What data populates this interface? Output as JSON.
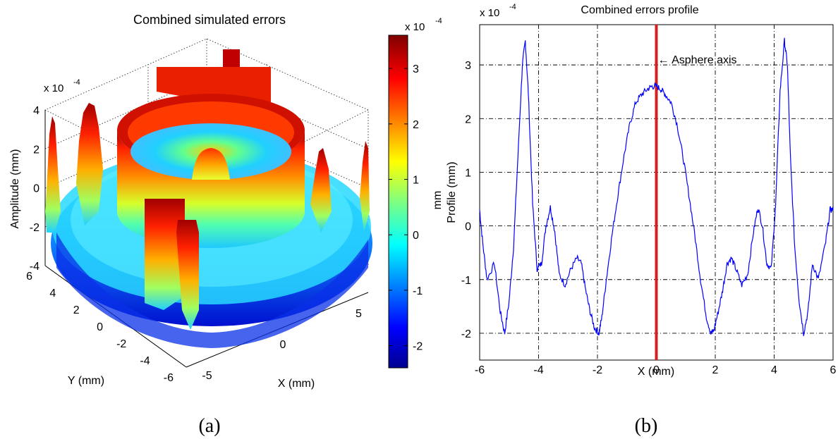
{
  "panels": {
    "left_caption": "(a)",
    "right_caption": "(b)"
  },
  "chart_data": [
    {
      "type": "surface",
      "title": "Combined simulated errors",
      "xlabel": "X (mm)",
      "ylabel": "Y (mm)",
      "zlabel": "Amplitude (mm)",
      "z_multiplier": "x 10",
      "z_exponent": "-4",
      "xlim": [
        -6,
        6
      ],
      "ylim": [
        -6,
        6
      ],
      "zlim": [
        -4,
        4
      ],
      "x_ticks": [
        "-5",
        "0",
        "5"
      ],
      "y_ticks": [
        "6",
        "4",
        "2",
        "0",
        "-2",
        "-4",
        "-6"
      ],
      "z_ticks": [
        "4",
        "2",
        "0",
        "-2",
        "-4"
      ],
      "grid": true,
      "colormap": "jet",
      "colorbar": {
        "label": "mm",
        "multiplier": "x 10",
        "exponent": "-4",
        "range": [
          -2.4,
          3.6
        ],
        "ticks": [
          "3",
          "2",
          "1",
          "0",
          "-1",
          "-2"
        ]
      }
    },
    {
      "type": "line",
      "title": "Combined errors profile",
      "xlabel": "X (mm)",
      "ylabel": "Profile (mm)",
      "y_multiplier": "x 10",
      "y_exponent": "-4",
      "xlim": [
        -6,
        6
      ],
      "ylim": [
        -2.5,
        3.75
      ],
      "x_ticks": [
        "-6",
        "-4",
        "-2",
        "0",
        "2",
        "4",
        "6"
      ],
      "y_ticks": [
        "3",
        "2",
        "1",
        "0",
        "-1",
        "-2"
      ],
      "grid": true,
      "series": [
        {
          "color": "#0000ff",
          "x": [
            -6.0,
            -5.9,
            -5.75,
            -5.5,
            -5.3,
            -5.15,
            -5.0,
            -4.85,
            -4.7,
            -4.55,
            -4.45,
            -4.35,
            -4.2,
            -4.05,
            -3.9,
            -3.75,
            -3.6,
            -3.45,
            -3.3,
            -3.1,
            -2.9,
            -2.7,
            -2.55,
            -2.4,
            -2.25,
            -2.1,
            -1.95,
            -1.85,
            -1.7,
            -1.5,
            -1.3,
            -1.1,
            -0.9,
            -0.7,
            -0.5,
            -0.3,
            -0.15,
            0.0,
            0.15,
            0.3,
            0.5,
            0.7,
            0.9,
            1.1,
            1.3,
            1.5,
            1.7,
            1.85,
            1.95,
            2.1,
            2.25,
            2.4,
            2.55,
            2.7,
            2.9,
            3.1,
            3.3,
            3.45,
            3.6,
            3.75,
            3.9,
            4.05,
            4.2,
            4.35,
            4.45,
            4.55,
            4.7,
            4.85,
            5.0,
            5.15,
            5.3,
            5.5,
            5.75,
            5.9,
            6.0
          ],
          "y": [
            0.3,
            -0.3,
            -1.0,
            -0.7,
            -1.6,
            -2.0,
            -1.4,
            -0.4,
            1.3,
            3.0,
            3.45,
            2.5,
            0.4,
            -0.8,
            -0.7,
            0.0,
            0.35,
            -0.1,
            -0.9,
            -1.1,
            -0.8,
            -0.6,
            -0.7,
            -1.2,
            -1.6,
            -1.9,
            -2.0,
            -1.7,
            -1.0,
            -0.15,
            0.6,
            1.3,
            1.9,
            2.3,
            2.45,
            2.55,
            2.6,
            2.6,
            2.55,
            2.45,
            2.3,
            1.9,
            1.3,
            0.6,
            -0.15,
            -1.0,
            -1.7,
            -2.0,
            -1.95,
            -1.6,
            -1.2,
            -0.7,
            -0.6,
            -0.8,
            -1.1,
            -0.9,
            -0.1,
            0.35,
            0.0,
            -0.7,
            -0.8,
            0.4,
            2.5,
            3.45,
            3.0,
            1.3,
            -0.4,
            -1.4,
            -2.0,
            -1.6,
            -0.7,
            -1.0,
            -0.3,
            0.3,
            0.3
          ]
        }
      ],
      "annotations": [
        {
          "text": "← Asphere axis",
          "x": 0,
          "color": "#d42020"
        }
      ]
    }
  ]
}
